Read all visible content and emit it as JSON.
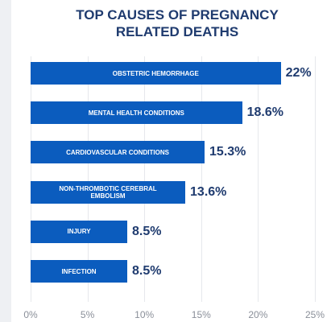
{
  "chart_data": {
    "type": "bar",
    "orientation": "horizontal",
    "title": "TOP CAUSES OF PREGNANCY RELATED DEATHS",
    "categories": [
      "OBSTETRIC HEMORRHAGE",
      "MENTAL HEALTH CONDITIONS",
      "CARDIOVASCULAR CONDITIONS",
      "NON-THROMBOTIC CEREBRAL EMBOLISM",
      "INJURY",
      "INFECTION"
    ],
    "values": [
      22,
      18.6,
      15.3,
      13.6,
      8.5,
      8.5
    ],
    "value_labels": [
      "22%",
      "18.6%",
      "15.3%",
      "13.6%",
      "8.5%",
      "8.5%"
    ],
    "color": "#0b5cbe",
    "xlim": [
      0,
      25
    ],
    "xticks": [
      {
        "value": 0,
        "label": "0%"
      },
      {
        "value": 5,
        "label": "5%"
      },
      {
        "value": 10,
        "label": "10%"
      },
      {
        "value": 15,
        "label": "15%"
      },
      {
        "value": 20,
        "label": "20%"
      },
      {
        "value": 25,
        "label": "25%"
      }
    ],
    "grid": true
  }
}
